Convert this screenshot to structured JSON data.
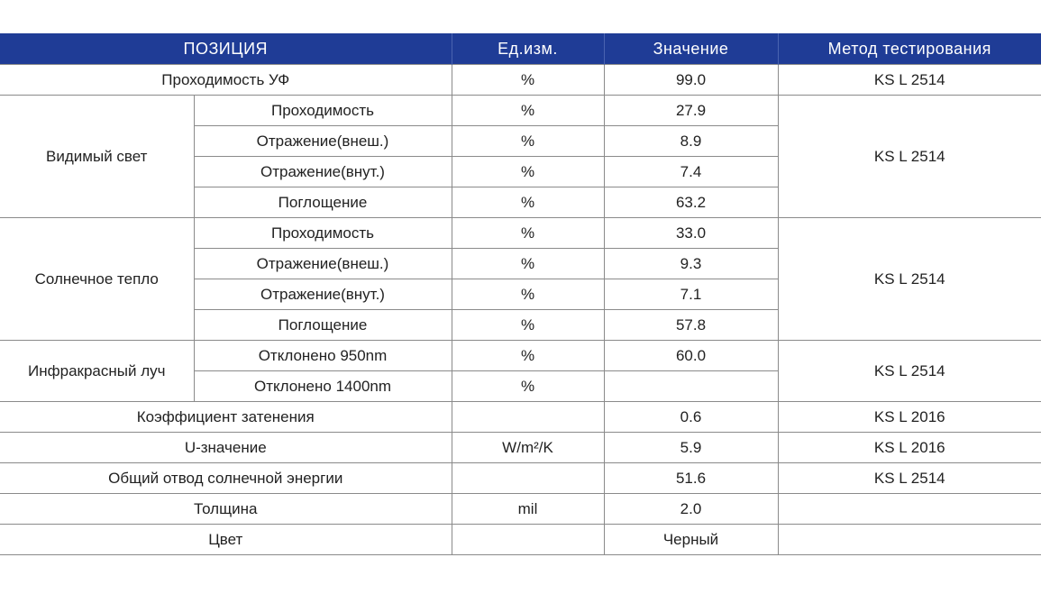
{
  "headers": {
    "position": "ПОЗИЦИЯ",
    "unit": "Ед.изм.",
    "value": "Значение",
    "method": "Метод тестирования"
  },
  "rows": {
    "uv": {
      "label": "Проходимость УФ",
      "unit": "%",
      "value": "99.0",
      "method": "KS L 2514"
    },
    "visible": {
      "group": "Видимый свет",
      "method": "KS L 2514",
      "items": [
        {
          "label": "Проходимость",
          "unit": "%",
          "value": "27.9"
        },
        {
          "label": "Отражение(внеш.)",
          "unit": "%",
          "value": "8.9"
        },
        {
          "label": "Отражение(внут.)",
          "unit": "%",
          "value": "7.4"
        },
        {
          "label": "Поглощение",
          "unit": "%",
          "value": "63.2"
        }
      ]
    },
    "solar": {
      "group": "Солнечное тепло",
      "method": "KS L 2514",
      "items": [
        {
          "label": "Проходимость",
          "unit": "%",
          "value": "33.0"
        },
        {
          "label": "Отражение(внеш.)",
          "unit": "%",
          "value": "9.3"
        },
        {
          "label": "Отражение(внут.)",
          "unit": "%",
          "value": "7.1"
        },
        {
          "label": "Поглощение",
          "unit": "%",
          "value": "57.8"
        }
      ]
    },
    "infrared": {
      "group": "Инфракрасный луч",
      "method": "KS L 2514",
      "items": [
        {
          "label": "Отклонено 950nm",
          "unit": "%",
          "value": "60.0"
        },
        {
          "label": "Отклонено 1400nm",
          "unit": "%",
          "value": ""
        }
      ]
    },
    "shading": {
      "label": "Коэффициент затенения",
      "unit": "",
      "value": "0.6",
      "method": "KS L 2016"
    },
    "u_value": {
      "label": "U-значение",
      "unit": "W/m²/K",
      "value": "5.9",
      "method": "KS L 2016"
    },
    "tser": {
      "label": "Общий отвод солнечной энергии",
      "unit": "",
      "value": "51.6",
      "method": "KS L 2514"
    },
    "thickness": {
      "label": "Толщина",
      "unit": "mil",
      "value": "2.0",
      "method": ""
    },
    "color": {
      "label": "Цвет",
      "unit": "",
      "value": "Черный",
      "method": ""
    }
  },
  "colors": {
    "header_bg": "#1f3c96",
    "header_text": "#ffffff",
    "border": "#8a8a8a",
    "text": "#222222"
  }
}
